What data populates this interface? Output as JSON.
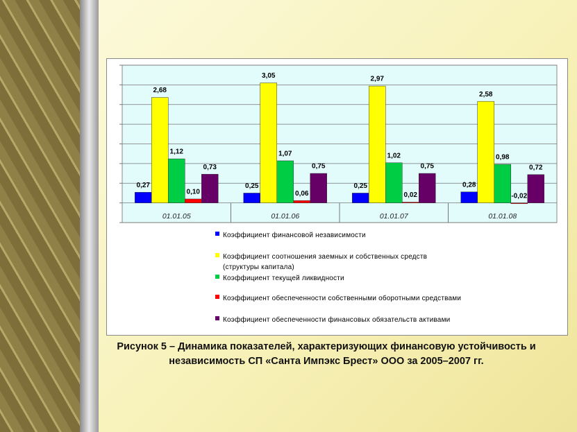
{
  "chart_data": {
    "type": "bar",
    "categories": [
      "01.01.05",
      "01.01.06",
      "01.01.07",
      "01.01.08"
    ],
    "series": [
      {
        "name": "Коэффициент финансовой независимости",
        "color": "#0000ff",
        "values": [
          0.27,
          0.25,
          0.25,
          0.28
        ],
        "value_labels": [
          "0,27",
          "0,25",
          "0,25",
          "0,28"
        ]
      },
      {
        "name": "Коэффициент соотношения заемных и собственных средств (структуры капитала)",
        "color": "#ffff00",
        "values": [
          2.68,
          3.05,
          2.97,
          2.58
        ],
        "value_labels": [
          "2,68",
          "3,05",
          "2,97",
          "2,58"
        ]
      },
      {
        "name": "Коэффициент текущей ликвидности",
        "color": "#00cc44",
        "values": [
          1.12,
          1.07,
          1.02,
          0.98
        ],
        "value_labels": [
          "1,12",
          "1,07",
          "1,02",
          "0,98"
        ]
      },
      {
        "name": "Коэффициент обеспеченности собственными оборотными средствами",
        "color": "#ff0000",
        "values": [
          0.1,
          0.06,
          0.02,
          -0.02
        ],
        "value_labels": [
          "0,10",
          "0,06",
          "0,02",
          "-0,02"
        ]
      },
      {
        "name": "Коэффициент обеспеченности финансовых обязательств активами",
        "color": "#660066",
        "values": [
          0.73,
          0.75,
          0.75,
          0.72
        ],
        "value_labels": [
          "0,73",
          "0,75",
          "0,75",
          "0,72"
        ]
      }
    ],
    "ylim": [
      -0.5,
      3.5
    ],
    "yticks": [
      -0.5,
      0,
      0.5,
      1,
      1.5,
      2,
      2.5,
      3,
      3.5
    ],
    "grid": true,
    "caption": "Рисунок 5 – Динамика показателей, характеризующих финансовую устойчивость и независимость СП «Санта Импэкс Брест» ООО за 2005–2007 гг."
  }
}
